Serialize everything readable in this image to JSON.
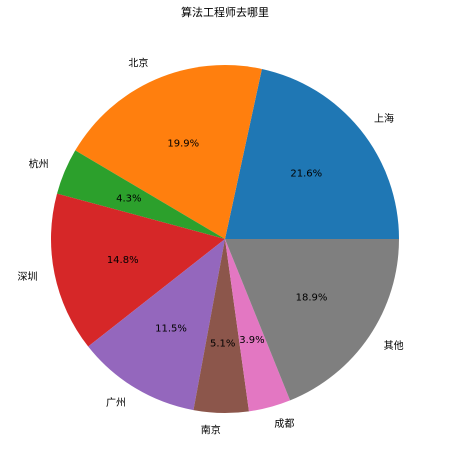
{
  "chart_data": {
    "type": "pie",
    "title": "算法工程师去哪里",
    "categories": [
      "上海",
      "北京",
      "杭州",
      "深圳",
      "广州",
      "南京",
      "成都",
      "其他"
    ],
    "values": [
      21.6,
      19.9,
      4.3,
      14.8,
      11.5,
      5.1,
      3.9,
      18.9
    ],
    "value_labels": [
      "21.6%",
      "19.9%",
      "4.3%",
      "14.8%",
      "11.5%",
      "5.1%",
      "3.9%",
      "18.9%"
    ],
    "colors": [
      "#1f77b4",
      "#ff7f0e",
      "#2ca02c",
      "#d62728",
      "#9467bd",
      "#8c564b",
      "#e377c2",
      "#7f7f7f"
    ]
  }
}
